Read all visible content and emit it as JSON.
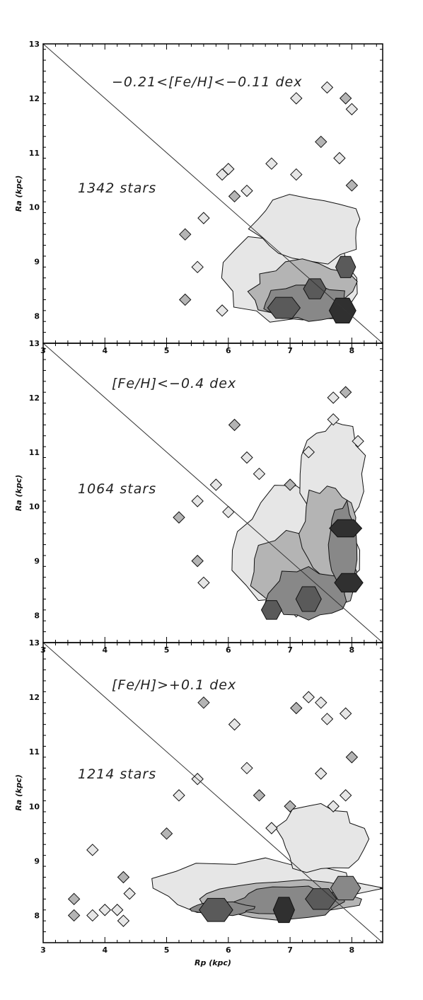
{
  "chart_data": [
    {
      "type": "contour",
      "title": "",
      "xlabel": "",
      "ylabel": "Ra (kpc)",
      "xlim": [
        3,
        8.5
      ],
      "ylim": [
        7.5,
        13
      ],
      "xticks": [
        3,
        4,
        5,
        6,
        7,
        8
      ],
      "yticks": [
        8,
        9,
        10,
        11,
        12,
        13
      ],
      "annotations": [
        "−0.21<[Fe/H]<−0.11 dex",
        "1342 stars"
      ],
      "line": {
        "x": [
          3,
          8.5
        ],
        "y": [
          13,
          7.5
        ]
      },
      "density_peaks": [
        {
          "x": 7.85,
          "y": 8.1,
          "level": 4
        },
        {
          "x": 7.4,
          "y": 8.5,
          "level": 3
        },
        {
          "x": 6.9,
          "y": 8.15,
          "level": 3
        },
        {
          "x": 7.9,
          "y": 8.9,
          "level": 3
        }
      ]
    },
    {
      "type": "contour",
      "title": "",
      "xlabel": "",
      "ylabel": "Ra (kpc)",
      "xlim": [
        3,
        8.5
      ],
      "ylim": [
        7.5,
        13
      ],
      "xticks": [
        3,
        4,
        5,
        6,
        7,
        8
      ],
      "yticks": [
        8,
        9,
        10,
        11,
        12,
        13
      ],
      "annotations": [
        "[Fe/H]<−0.4 dex",
        "1064 stars"
      ],
      "line": {
        "x": [
          3,
          8.5
        ],
        "y": [
          13,
          7.5
        ]
      },
      "density_peaks": [
        {
          "x": 7.95,
          "y": 8.6,
          "level": 4
        },
        {
          "x": 7.9,
          "y": 9.6,
          "level": 4
        },
        {
          "x": 6.7,
          "y": 8.1,
          "level": 3
        },
        {
          "x": 7.3,
          "y": 8.3,
          "level": 3
        }
      ]
    },
    {
      "type": "contour",
      "title": "",
      "xlabel": "Rp (kpc)",
      "ylabel": "Ra (kpc)",
      "xlim": [
        3,
        8.5
      ],
      "ylim": [
        7.5,
        13
      ],
      "xticks": [
        3,
        4,
        5,
        6,
        7,
        8
      ],
      "yticks": [
        8,
        9,
        10,
        11,
        12,
        13
      ],
      "annotations": [
        "[Fe/H]>+0.1 dex",
        "1214 stars"
      ],
      "line": {
        "x": [
          3,
          8.5
        ],
        "y": [
          13,
          7.5
        ]
      },
      "density_peaks": [
        {
          "x": 6.9,
          "y": 8.1,
          "level": 4
        },
        {
          "x": 7.5,
          "y": 8.3,
          "level": 3
        },
        {
          "x": 5.8,
          "y": 8.1,
          "level": 3
        },
        {
          "x": 7.9,
          "y": 8.5,
          "level": 2
        }
      ]
    }
  ]
}
